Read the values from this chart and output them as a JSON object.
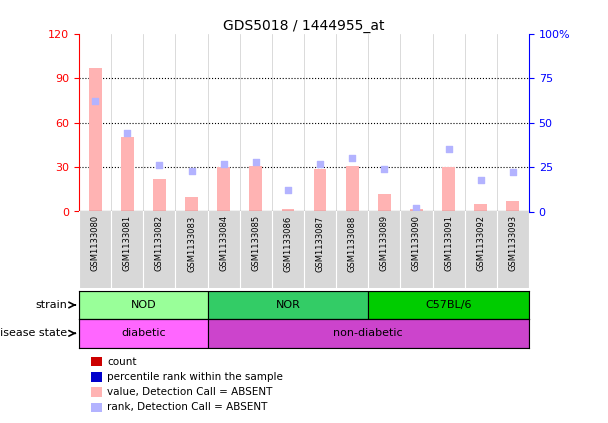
{
  "title": "GDS5018 / 1444955_at",
  "samples": [
    "GSM1133080",
    "GSM1133081",
    "GSM1133082",
    "GSM1133083",
    "GSM1133084",
    "GSM1133085",
    "GSM1133086",
    "GSM1133087",
    "GSM1133088",
    "GSM1133089",
    "GSM1133090",
    "GSM1133091",
    "GSM1133092",
    "GSM1133093"
  ],
  "bar_heights": [
    97,
    50,
    22,
    10,
    30,
    31,
    2,
    29,
    31,
    12,
    2,
    30,
    5,
    7
  ],
  "rank_dots": [
    62,
    44,
    26,
    23,
    27,
    28,
    12,
    27,
    30,
    24,
    2,
    35,
    18,
    22
  ],
  "ylim_left": [
    0,
    120
  ],
  "ylim_right": [
    0,
    100
  ],
  "yticks_left": [
    0,
    30,
    60,
    90,
    120
  ],
  "yticks_right": [
    0,
    25,
    50,
    75,
    100
  ],
  "ytick_labels_left": [
    "0",
    "30",
    "60",
    "90",
    "120"
  ],
  "ytick_labels_right": [
    "0",
    "25",
    "50",
    "75",
    "100%"
  ],
  "bar_color_absent": "#FFB3B3",
  "rank_dot_color_absent": "#B3B3FF",
  "strain_groups": [
    {
      "label": "NOD",
      "start": 0,
      "end": 4,
      "color": "#99FF99"
    },
    {
      "label": "NOR",
      "start": 4,
      "end": 9,
      "color": "#33CC66"
    },
    {
      "label": "C57BL/6",
      "start": 9,
      "end": 14,
      "color": "#00CC00"
    }
  ],
  "disease_groups": [
    {
      "label": "diabetic",
      "start": 0,
      "end": 4,
      "color": "#FF66FF"
    },
    {
      "label": "non-diabetic",
      "start": 4,
      "end": 14,
      "color": "#CC44CC"
    }
  ],
  "strain_label": "strain",
  "disease_label": "disease state",
  "legend_items": [
    {
      "label": "count",
      "color": "#CC0000"
    },
    {
      "label": "percentile rank within the sample",
      "color": "#0000CC"
    },
    {
      "label": "value, Detection Call = ABSENT",
      "color": "#FFB3B3"
    },
    {
      "label": "rank, Detection Call = ABSENT",
      "color": "#B3B3FF"
    }
  ]
}
